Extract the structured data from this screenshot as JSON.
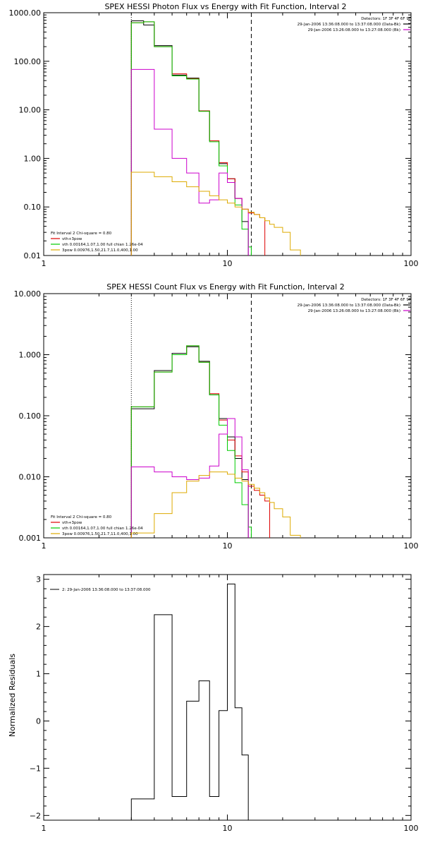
{
  "chart_data": [
    {
      "type": "line",
      "title": "SPEX HESSI Photon Flux vs Energy with Fit Function, Interval 2",
      "xlabel": "",
      "ylabel": "",
      "x_scale": "log",
      "y_scale": "log",
      "xlim": [
        1,
        100
      ],
      "ylim": [
        0.01,
        1000
      ],
      "yticks": [
        {
          "value": 1000,
          "label": "1000.00"
        },
        {
          "value": 100,
          "label": "100.00"
        },
        {
          "value": 10,
          "label": "10.00"
        },
        {
          "value": 1,
          "label": "1.00"
        },
        {
          "value": 0.1,
          "label": "0.10"
        },
        {
          "value": 0.01,
          "label": "0.01"
        }
      ],
      "xticks": [
        {
          "value": 1,
          "label": "1"
        },
        {
          "value": 10,
          "label": "10"
        },
        {
          "value": 100,
          "label": "100"
        }
      ],
      "vlines": [
        {
          "x": 3.0,
          "style": "dotted",
          "color": "#000000"
        },
        {
          "x": 13.5,
          "style": "dashed",
          "color": "#000000"
        }
      ],
      "info_text": [
        "Detectors: 1F 3F 4F 6F 9F",
        "29-Jan-2006 13:36:08.000 to 13:37:08.000 (Data-Bk)",
        "29-Jan-2006 13:26:08.000 to 13:27:08.000 (Bk)"
      ],
      "info_markers": [
        "#000000",
        "#cc00cc"
      ],
      "fit_text": [
        {
          "text": "Fit Interval  2   Chi-square = 0.80",
          "color": "#000000"
        },
        {
          "text": "vth+3pow",
          "color": "#dd0000"
        },
        {
          "text": "vth 0.00164,1.07,1.00  full chian 1.26e-04",
          "color": "#00cc00"
        },
        {
          "text": "3pow 0.00976,1.50,21.7,11.0,400,1.00",
          "color": "#ddaa00"
        }
      ],
      "series": [
        {
          "color": "#000000",
          "edges": [
            3.0,
            3.5,
            4.0,
            5.0,
            6.0,
            7.0,
            8.0,
            9.0,
            10.0,
            11.0,
            12.0,
            13.0
          ],
          "values": [
            680,
            560,
            210,
            52,
            45,
            9.5,
            2.3,
            0.78,
            0.38,
            0.15,
            0.05
          ]
        },
        {
          "color": "#dd0000",
          "edges": [
            3.0,
            3.5,
            4.0,
            5.0,
            6.0,
            7.0,
            8.0,
            9.0,
            10.0,
            11.0,
            12.0,
            13.0,
            14.0,
            15.0,
            16.0
          ],
          "values": [
            620,
            650,
            200,
            55,
            44,
            9.5,
            2.3,
            0.82,
            0.38,
            0.15,
            0.09,
            0.075,
            0.07,
            0.06
          ]
        },
        {
          "color": "#00cc00",
          "edges": [
            3.0,
            3.5,
            4.0,
            5.0,
            6.0,
            7.0,
            8.0,
            9.0,
            10.0,
            11.0,
            12.0,
            13.0,
            13.5
          ],
          "values": [
            620,
            650,
            200,
            50,
            43,
            9.3,
            2.2,
            0.7,
            0.32,
            0.11,
            0.035,
            0.015
          ]
        },
        {
          "color": "#cc00cc",
          "edges": [
            3.0,
            4.0,
            5.0,
            6.0,
            7.0,
            8.0,
            9.0,
            10.0,
            11.0,
            12.0,
            13.0
          ],
          "values": [
            68,
            4.0,
            1.0,
            0.5,
            0.12,
            0.14,
            0.5,
            0.32,
            0.15,
            0.09
          ]
        },
        {
          "color": "#ddaa00",
          "edges": [
            3.0,
            4.0,
            5.0,
            6.0,
            7.0,
            8.0,
            9.0,
            10.0,
            11.0,
            12.0,
            13.0,
            14.0,
            15.0,
            16.0,
            17.0,
            18.0,
            20.0,
            22.0,
            25.0
          ],
          "values": [
            0.52,
            0.42,
            0.33,
            0.26,
            0.21,
            0.17,
            0.14,
            0.12,
            0.1,
            0.09,
            0.078,
            0.07,
            0.06,
            0.052,
            0.044,
            0.038,
            0.03,
            0.013
          ]
        }
      ]
    },
    {
      "type": "line",
      "title": "SPEX HESSI Count Flux vs Energy with Fit Function, Interval 2",
      "xlabel": "",
      "ylabel": "",
      "x_scale": "log",
      "y_scale": "log",
      "xlim": [
        1,
        100
      ],
      "ylim": [
        0.001,
        10
      ],
      "yticks": [
        {
          "value": 10,
          "label": "10.000"
        },
        {
          "value": 1,
          "label": "1.000"
        },
        {
          "value": 0.1,
          "label": "0.100"
        },
        {
          "value": 0.01,
          "label": "0.010"
        },
        {
          "value": 0.001,
          "label": "0.001"
        }
      ],
      "xticks": [
        {
          "value": 1,
          "label": "1"
        },
        {
          "value": 10,
          "label": "10"
        },
        {
          "value": 100,
          "label": "100"
        }
      ],
      "vlines": [
        {
          "x": 3.0,
          "style": "dotted",
          "color": "#000000"
        },
        {
          "x": 13.5,
          "style": "dashed",
          "color": "#000000"
        }
      ],
      "info_text": [
        "Detectors: 1F 3F 4F 6F 9F",
        "29-Jan-2006 13:36:08.000 to 13:37:08.000 (Data-Bk)",
        "29-Jan-2006 13:26:08.000 to 13:27:08.000 (Bk)"
      ],
      "info_markers": [
        "#000000",
        "#cc00cc"
      ],
      "fit_text": [
        {
          "text": "Fit Interval  2   Chi-square = 0.80",
          "color": "#000000"
        },
        {
          "text": "vth+3pow",
          "color": "#dd0000"
        },
        {
          "text": "vth 0.00164,1.07,1.00  full chian 1.26e-04",
          "color": "#00cc00"
        },
        {
          "text": "3pow 0.00976,1.50,21.7,11.0,400,1.00",
          "color": "#ddaa00"
        }
      ],
      "series": [
        {
          "color": "#000000",
          "edges": [
            3.0,
            4.0,
            5.0,
            6.0,
            7.0,
            8.0,
            9.0,
            10.0,
            11.0,
            12.0,
            13.0
          ],
          "values": [
            0.13,
            0.55,
            1.05,
            1.35,
            0.78,
            0.22,
            0.09,
            0.045,
            0.02,
            0.009
          ]
        },
        {
          "color": "#dd0000",
          "edges": [
            3.0,
            4.0,
            5.0,
            6.0,
            7.0,
            8.0,
            9.0,
            10.0,
            11.0,
            12.0,
            13.0,
            14.0,
            15.0,
            16.0,
            17.0
          ],
          "values": [
            0.14,
            0.52,
            1.0,
            1.4,
            0.75,
            0.23,
            0.085,
            0.04,
            0.022,
            0.012,
            0.007,
            0.006,
            0.005,
            0.004
          ]
        },
        {
          "color": "#00cc00",
          "edges": [
            3.0,
            4.0,
            5.0,
            6.0,
            7.0,
            8.0,
            9.0,
            10.0,
            11.0,
            12.0,
            13.0,
            13.5
          ],
          "values": [
            0.14,
            0.52,
            1.0,
            1.4,
            0.75,
            0.22,
            0.07,
            0.027,
            0.008,
            0.0035,
            0.0015
          ]
        },
        {
          "color": "#cc00cc",
          "edges": [
            3.0,
            4.0,
            5.0,
            6.0,
            7.0,
            8.0,
            9.0,
            10.0,
            11.0,
            12.0,
            13.0
          ],
          "values": [
            0.0145,
            0.012,
            0.01,
            0.009,
            0.0095,
            0.015,
            0.05,
            0.09,
            0.045,
            0.013
          ]
        },
        {
          "color": "#ddaa00",
          "edges": [
            3.0,
            4.0,
            5.0,
            6.0,
            7.0,
            8.0,
            9.0,
            10.0,
            11.0,
            12.0,
            13.0,
            14.0,
            15.0,
            16.0,
            17.0,
            18.0,
            20.0,
            22.0,
            25.0
          ],
          "values": [
            0.0012,
            0.0025,
            0.0055,
            0.0085,
            0.0105,
            0.012,
            0.012,
            0.011,
            0.0095,
            0.0085,
            0.0075,
            0.0065,
            0.0055,
            0.0045,
            0.0038,
            0.003,
            0.0022,
            0.0011
          ]
        }
      ]
    },
    {
      "type": "line",
      "title": "",
      "xlabel": "",
      "ylabel": "Normalized Residuals",
      "x_scale": "log",
      "y_scale": "linear",
      "xlim": [
        1,
        100
      ],
      "ylim": [
        -2.1,
        3.1
      ],
      "yticks": [
        {
          "value": 3,
          "label": "3"
        },
        {
          "value": 2,
          "label": "2"
        },
        {
          "value": 1,
          "label": "1"
        },
        {
          "value": 0,
          "label": "0"
        },
        {
          "value": -1,
          "label": "−1"
        },
        {
          "value": -2,
          "label": "−2"
        }
      ],
      "xticks": [
        {
          "value": 1,
          "label": "1"
        },
        {
          "value": 10,
          "label": "10"
        },
        {
          "value": 100,
          "label": "100"
        }
      ],
      "vlines": [],
      "info_text": [],
      "info_markers": [],
      "legend": "2: 29-Jan-2006 13:36:08.000 to 13:37:08.000",
      "fit_text": [],
      "series": [
        {
          "color": "#000000",
          "edges": [
            3.0,
            4.0,
            5.0,
            6.0,
            7.0,
            8.0,
            9.0,
            10.0,
            11.0,
            12.0,
            13.0
          ],
          "values": [
            -1.65,
            2.25,
            -1.6,
            0.42,
            0.85,
            -1.6,
            0.22,
            2.9,
            0.28,
            -0.72
          ]
        }
      ]
    }
  ]
}
